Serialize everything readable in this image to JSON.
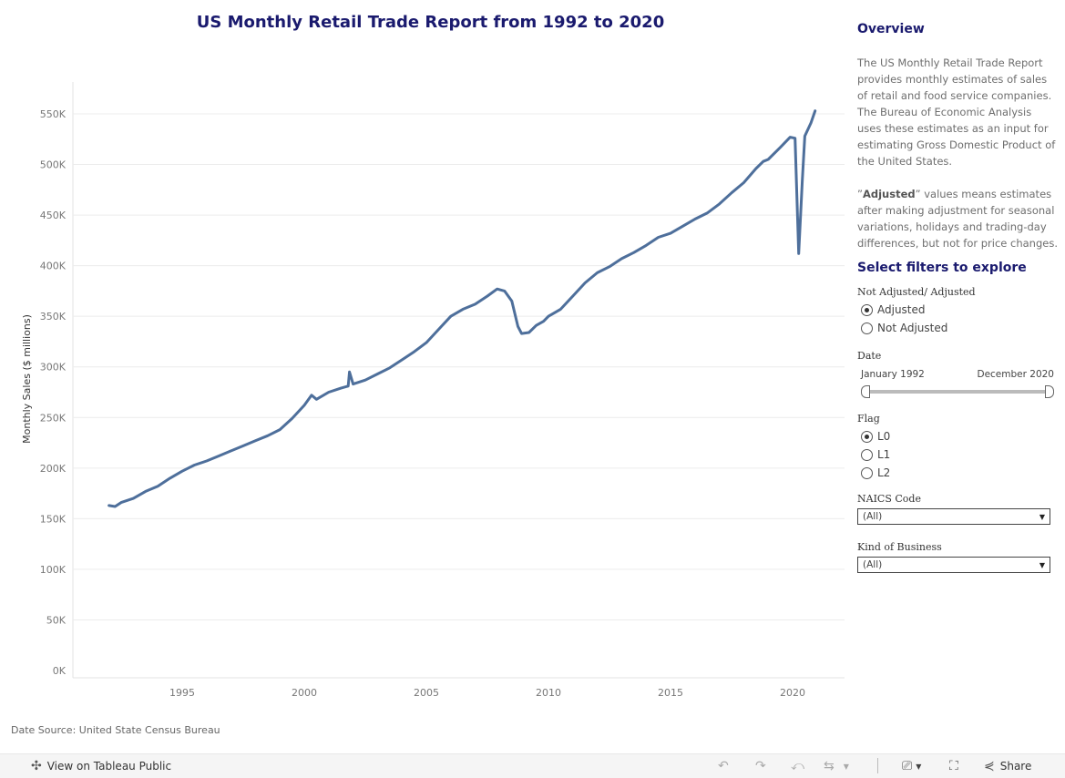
{
  "title": "US Monthly Retail Trade Report from 1992 to 2020",
  "source": "Date Source: United State Census Bureau",
  "overview": {
    "heading": "Overview",
    "paragraph1": "The US Monthly Retail Trade Report provides monthly estimates of sales of retail and food service companies. The Bureau of Economic Analysis uses these estimates as an input for estimating Gross Domestic Product of the United States.",
    "paragraph2_quote_open": "”",
    "paragraph2_bold": "Adjusted",
    "paragraph2_rest": "” values means estimates after making adjustment for seasonal variations, holidays and trading-day differences, but not for price changes."
  },
  "filters": {
    "heading": "Select filters to explore",
    "adjust_label": "Not Adjusted/ Adjusted",
    "adjust_options": [
      "Adjusted",
      "Not Adjusted"
    ],
    "adjust_selected": "Adjusted",
    "date_label": "Date",
    "date_start": "January 1992",
    "date_end": "December 2020",
    "flag_label": "Flag",
    "flag_options": [
      "L0",
      "L1",
      "L2"
    ],
    "flag_selected": "L0",
    "naics_label": "NAICS Code",
    "naics_value": "(All)",
    "kind_label": "Kind of Business",
    "kind_value": "(All)"
  },
  "toolbar": {
    "view_label": "View on Tableau Public",
    "share_label": "Share"
  },
  "colors": {
    "line": "#4e6f9b",
    "title": "#1a1a6e",
    "grid": "#ececec"
  },
  "chart_data": {
    "type": "line",
    "title": "US Monthly Retail Trade Report from 1992 to 2020",
    "xlabel": "",
    "ylabel": "Monthly Sales ($ millions)",
    "ylim": [
      0,
      580000
    ],
    "xlim": [
      1991.0,
      2022.0
    ],
    "yticks": [
      0,
      50000,
      100000,
      150000,
      200000,
      250000,
      300000,
      350000,
      400000,
      450000,
      500000,
      550000
    ],
    "ytick_labels": [
      "0K",
      "50K",
      "100K",
      "150K",
      "200K",
      "250K",
      "300K",
      "350K",
      "400K",
      "450K",
      "500K",
      "550K"
    ],
    "xticks": [
      1995,
      2000,
      2005,
      2010,
      2015,
      2020
    ],
    "grid": true,
    "legend": "none",
    "series": [
      {
        "x": [
          1992.0,
          1992.25,
          1992.5,
          1993.0,
          1993.5,
          1994.0,
          1994.5,
          1995.0,
          1995.5,
          1996.0,
          1996.5,
          1997.0,
          1997.5,
          1998.0,
          1998.5,
          1999.0,
          1999.5,
          2000.0,
          2000.3,
          2000.5,
          2001.0,
          2001.5,
          2001.8,
          2001.85,
          2002.0,
          2002.5,
          2003.0,
          2003.5,
          2004.0,
          2004.5,
          2005.0,
          2005.5,
          2006.0,
          2006.5,
          2007.0,
          2007.5,
          2007.9,
          2008.2,
          2008.5,
          2008.75,
          2008.9,
          2009.2,
          2009.5,
          2009.8,
          2010.0,
          2010.5,
          2011.0,
          2011.5,
          2012.0,
          2012.5,
          2013.0,
          2013.5,
          2014.0,
          2014.5,
          2015.0,
          2015.5,
          2016.0,
          2016.5,
          2017.0,
          2017.5,
          2018.0,
          2018.5,
          2018.8,
          2019.0,
          2019.5,
          2019.9,
          2020.1,
          2020.25,
          2020.4,
          2020.5,
          2020.75,
          2020.92
        ],
        "values": [
          163000,
          162000,
          166000,
          170000,
          177000,
          182000,
          190000,
          197000,
          203000,
          207000,
          212000,
          217000,
          222000,
          227000,
          232000,
          238000,
          249000,
          262000,
          272000,
          268000,
          275000,
          279000,
          281000,
          295000,
          283000,
          287000,
          293000,
          299000,
          307000,
          315000,
          324000,
          337000,
          350000,
          357000,
          362000,
          370000,
          377000,
          375000,
          365000,
          340000,
          333000,
          334000,
          341000,
          345000,
          350000,
          357000,
          370000,
          383000,
          393000,
          399000,
          407000,
          413000,
          420000,
          428000,
          432000,
          439000,
          446000,
          452000,
          461000,
          472000,
          482000,
          496000,
          503000,
          505000,
          517000,
          527000,
          526000,
          412000,
          485000,
          528000,
          541000,
          553000
        ]
      }
    ]
  }
}
